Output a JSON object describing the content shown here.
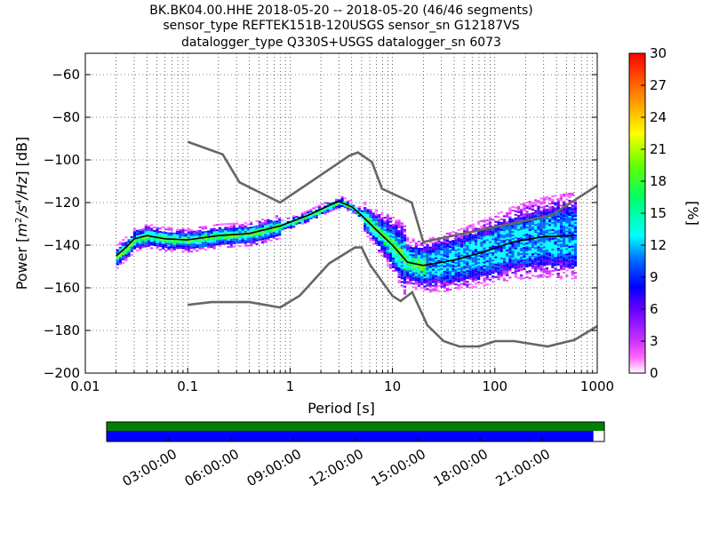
{
  "title_lines": [
    "BK.BK04.00.HHE   2018-05-20 -- 2018-05-20  (46/46 segments)",
    "sensor_type REFTEK151B-120USGS sensor_sn G12187VS",
    "datalogger_type Q330S+USGS datalogger_sn 6073"
  ],
  "chart_data": {
    "type": "heatmap",
    "xlabel": "Period [s]",
    "ylabel": "Power [m²/s⁴/Hz] [dB]",
    "ylabel_parts": {
      "lead": "Power [",
      "unit_m": "m",
      "unit_m_exp": "2",
      "unit_s": "/s",
      "unit_s_exp": "4",
      "unit_hz": "/Hz",
      "tail": "] [dB]"
    },
    "x_scale": "log",
    "xlim": [
      0.01,
      1000
    ],
    "ylim": [
      -200,
      -50
    ],
    "x_ticks": [
      {
        "value": 0.01,
        "label": "0.01"
      },
      {
        "value": 0.1,
        "label": "0.1"
      },
      {
        "value": 1,
        "label": "1"
      },
      {
        "value": 10,
        "label": "10"
      },
      {
        "value": 100,
        "label": "100"
      },
      {
        "value": 1000,
        "label": "1000"
      }
    ],
    "y_ticks": [
      {
        "value": -60,
        "label": "−60"
      },
      {
        "value": -80,
        "label": "−80"
      },
      {
        "value": -100,
        "label": "−100"
      },
      {
        "value": -120,
        "label": "−120"
      },
      {
        "value": -140,
        "label": "−140"
      },
      {
        "value": -160,
        "label": "−160"
      },
      {
        "value": -180,
        "label": "−180"
      },
      {
        "value": -200,
        "label": "−200"
      }
    ],
    "grid": true,
    "colorbar": {
      "label": "[%]",
      "min": 0,
      "max": 30,
      "ticks": [
        {
          "value": 0,
          "label": "0"
        },
        {
          "value": 3,
          "label": "3"
        },
        {
          "value": 6,
          "label": "6"
        },
        {
          "value": 9,
          "label": "9"
        },
        {
          "value": 12,
          "label": "12"
        },
        {
          "value": 15,
          "label": "15"
        },
        {
          "value": 18,
          "label": "18"
        },
        {
          "value": 21,
          "label": "21"
        },
        {
          "value": 24,
          "label": "24"
        },
        {
          "value": 27,
          "label": "27"
        },
        {
          "value": 30,
          "label": "30"
        }
      ]
    },
    "nhnm": [
      [
        0.1,
        -168
      ],
      [
        0.17,
        -166.7
      ],
      [
        0.4,
        -166.7
      ],
      [
        0.8,
        -169.2
      ],
      [
        1.24,
        -163.7
      ],
      [
        2.4,
        -148.6
      ],
      [
        4.3,
        -141.1
      ],
      [
        5,
        -141.1
      ],
      [
        6,
        -149
      ],
      [
        10,
        -163.8
      ],
      [
        12,
        -166.2
      ],
      [
        15.6,
        -162.1
      ],
      [
        21.9,
        -177.5
      ],
      [
        31.6,
        -185
      ],
      [
        45,
        -187.5
      ],
      [
        70,
        -187.5
      ],
      [
        101,
        -185
      ],
      [
        154,
        -185
      ],
      [
        328,
        -187.5
      ],
      [
        600,
        -184.4
      ],
      [
        1000,
        -178
      ]
    ],
    "nlnm": [
      [
        0.1,
        -91.5
      ],
      [
        0.22,
        -97.4
      ],
      [
        0.32,
        -110.5
      ],
      [
        0.8,
        -120
      ],
      [
        3.8,
        -98
      ],
      [
        4.6,
        -96.5
      ],
      [
        6.3,
        -101
      ],
      [
        7.9,
        -113.5
      ],
      [
        15.4,
        -120
      ],
      [
        20,
        -138.5
      ],
      [
        354.8,
        -126
      ],
      [
        1000,
        -112
      ]
    ],
    "mean_curve": [
      [
        0.02,
        -145
      ],
      [
        0.025,
        -141
      ],
      [
        0.03,
        -137
      ],
      [
        0.04,
        -135.5
      ],
      [
        0.06,
        -137
      ],
      [
        0.1,
        -137.5
      ],
      [
        0.2,
        -135.5
      ],
      [
        0.4,
        -134.5
      ],
      [
        0.8,
        -131
      ],
      [
        1.5,
        -126
      ],
      [
        2.5,
        -121
      ],
      [
        3,
        -119.5
      ],
      [
        4,
        -122
      ],
      [
        5,
        -126
      ],
      [
        7,
        -133
      ],
      [
        10,
        -140
      ],
      [
        14,
        -148
      ],
      [
        20,
        -149.5
      ],
      [
        40,
        -147
      ],
      [
        80,
        -143
      ],
      [
        150,
        -138.5
      ],
      [
        300,
        -136
      ],
      [
        600,
        -135.5
      ]
    ]
  },
  "segment_bar": {
    "colors": {
      "data": "#008000",
      "coverage": "#0000ff"
    },
    "coverage_fraction": 0.978,
    "time_ticks": [
      "03:00:00",
      "06:00:00",
      "09:00:00",
      "12:00:00",
      "15:00:00",
      "18:00:00",
      "21:00:00"
    ]
  }
}
